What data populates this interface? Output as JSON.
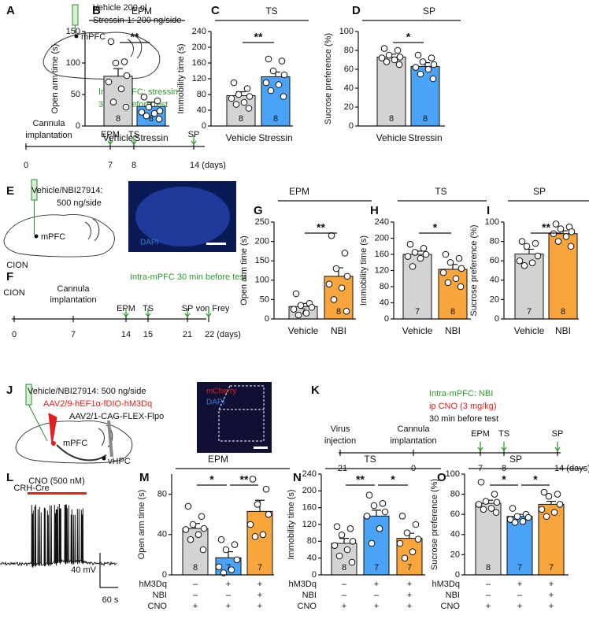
{
  "chart_data": [
    {
      "type": "bar",
      "panel": "B",
      "title": "EPM",
      "ylabel": "Open arm time (s)",
      "categories": [
        "Vehicle",
        "Stressin"
      ],
      "values": [
        79,
        31
      ],
      "errors": [
        12,
        7
      ],
      "colors": [
        "#d3d3d3",
        "#4ba3f7"
      ],
      "n": [
        8,
        8
      ],
      "points": [
        [
          134,
          102,
          100,
          80,
          70,
          59,
          38,
          30
        ],
        [
          46,
          40,
          30,
          24,
          22,
          20,
          16,
          11
        ]
      ],
      "significance": [
        "**"
      ],
      "ylim": [
        0,
        150
      ],
      "yticks": [
        0,
        50,
        100,
        150
      ]
    },
    {
      "type": "bar",
      "panel": "C",
      "title": "TS",
      "ylabel": "Immobility time (s)",
      "categories": [
        "Vehicle",
        "Stressin"
      ],
      "values": [
        77,
        125
      ],
      "errors": [
        10,
        12
      ],
      "colors": [
        "#d3d3d3",
        "#4ba3f7"
      ],
      "n": [
        8,
        8
      ],
      "points": [
        [
          110,
          95,
          80,
          75,
          70,
          60,
          55,
          45
        ],
        [
          170,
          165,
          140,
          130,
          110,
          105,
          90,
          75
        ]
      ],
      "significance": [
        "**"
      ],
      "ylim": [
        0,
        240
      ],
      "yticks": [
        0,
        40,
        80,
        120,
        160,
        200,
        240
      ]
    },
    {
      "type": "bar",
      "panel": "D",
      "title": "SP",
      "ylabel": "Sucrose preference (%)",
      "categories": [
        "Vehicle",
        "Stressin"
      ],
      "values": [
        73,
        63
      ],
      "errors": [
        3,
        4
      ],
      "colors": [
        "#d3d3d3",
        "#4ba3f7"
      ],
      "n": [
        8,
        8
      ],
      "points": [
        [
          82,
          80,
          75,
          73,
          72,
          70,
          68,
          65
        ],
        [
          75,
          72,
          68,
          65,
          62,
          60,
          55,
          50
        ]
      ],
      "significance": [
        "*"
      ],
      "ylim": [
        0,
        100
      ],
      "yticks": [
        0,
        20,
        40,
        60,
        80,
        100
      ]
    },
    {
      "type": "bar",
      "panel": "G",
      "title": "EPM",
      "ylabel": "Open arm time (s)",
      "categories": [
        "Vehicle",
        "NBI"
      ],
      "values": [
        32,
        110
      ],
      "errors": [
        8,
        22
      ],
      "colors": [
        "#d3d3d3",
        "#f8a53b"
      ],
      "n": [
        7,
        8
      ],
      "points": [
        [
          65,
          40,
          35,
          30,
          25,
          15,
          10
        ],
        [
          215,
          170,
          130,
          110,
          90,
          80,
          50,
          20
        ]
      ],
      "significance": [
        "**"
      ],
      "ylim": [
        0,
        250
      ],
      "yticks": [
        0,
        50,
        100,
        150,
        200,
        250
      ]
    },
    {
      "type": "bar",
      "panel": "H",
      "title": "TS",
      "ylabel": "Immobility time (s)",
      "categories": [
        "Vehicle",
        "NBI"
      ],
      "values": [
        160,
        123
      ],
      "errors": [
        8,
        12
      ],
      "colors": [
        "#d3d3d3",
        "#f8a53b"
      ],
      "n": [
        7,
        8
      ],
      "points": [
        [
          185,
          175,
          165,
          160,
          155,
          150,
          130
        ],
        [
          160,
          150,
          140,
          125,
          115,
          100,
          90,
          80
        ]
      ],
      "significance": [
        "*"
      ],
      "ylim": [
        0,
        240
      ],
      "yticks": [
        0,
        40,
        80,
        120,
        160,
        200,
        240
      ]
    },
    {
      "type": "bar",
      "panel": "I",
      "title": "SP",
      "ylabel": "Sucrose preference (%)",
      "categories": [
        "Vehicle",
        "NBI"
      ],
      "values": [
        67,
        88
      ],
      "errors": [
        5,
        3
      ],
      "colors": [
        "#d3d3d3",
        "#f8a53b"
      ],
      "n": [
        7,
        8
      ],
      "points": [
        [
          80,
          78,
          75,
          65,
          60,
          58,
          55
        ],
        [
          98,
          95,
          93,
          90,
          88,
          85,
          80,
          75
        ]
      ],
      "significance": [
        "**"
      ],
      "ylim": [
        0,
        100
      ],
      "yticks": [
        0,
        20,
        40,
        60,
        80,
        100
      ]
    },
    {
      "type": "bar",
      "panel": "M",
      "title": "EPM",
      "ylabel": "Open arm time (s)",
      "categories": [
        null,
        null,
        null
      ],
      "values": [
        46,
        17,
        63
      ],
      "errors": [
        5,
        6,
        11
      ],
      "colors": [
        "#d3d3d3",
        "#4ba3f7",
        "#f8a53b"
      ],
      "n": [
        8,
        7,
        7
      ],
      "points": [
        [
          68,
          58,
          50,
          46,
          45,
          40,
          35,
          25
        ],
        [
          35,
          30,
          25,
          15,
          8,
          5,
          2
        ],
        [
          95,
          85,
          70,
          60,
          50,
          40,
          38
        ]
      ],
      "significance": [
        "*",
        "**"
      ],
      "ylim": [
        0,
        100
      ],
      "yticks": [
        0,
        40,
        80
      ],
      "conditions": [
        {
          "label": "hM3Dq",
          "values": [
            "–",
            "+",
            "+"
          ]
        },
        {
          "label": "NBI",
          "values": [
            "–",
            "–",
            "+"
          ]
        },
        {
          "label": "CNO",
          "values": [
            "+",
            "+",
            "+"
          ]
        }
      ]
    },
    {
      "type": "bar",
      "panel": "N",
      "title": "TS",
      "ylabel": "Immobility time (s)",
      "categories": [
        null,
        null,
        null
      ],
      "values": [
        75,
        140,
        87
      ],
      "errors": [
        12,
        14,
        12
      ],
      "colors": [
        "#d3d3d3",
        "#4ba3f7",
        "#f8a53b"
      ],
      "n": [
        8,
        7,
        7
      ],
      "points": [
        [
          115,
          110,
          95,
          80,
          70,
          60,
          45,
          30
        ],
        [
          190,
          170,
          165,
          150,
          140,
          110,
          75
        ],
        [
          140,
          120,
          100,
          85,
          75,
          55,
          40
        ]
      ],
      "significance": [
        "**",
        "*"
      ],
      "ylim": [
        0,
        240
      ],
      "yticks": [
        0,
        40,
        80,
        120,
        160,
        200,
        240
      ],
      "conditions": [
        {
          "label": "hM3Dq",
          "values": [
            "–",
            "+",
            "+"
          ]
        },
        {
          "label": "NBI",
          "values": [
            "–",
            "–",
            "+"
          ]
        },
        {
          "label": "CNO",
          "values": [
            "+",
            "+",
            "+"
          ]
        }
      ]
    },
    {
      "type": "bar",
      "panel": "O",
      "title": "SP",
      "ylabel": "Sucrose preference (%)",
      "categories": [
        null,
        null,
        null
      ],
      "values": [
        71,
        58,
        70
      ],
      "errors": [
        3,
        2,
        3
      ],
      "colors": [
        "#d3d3d3",
        "#4ba3f7",
        "#f8a53b"
      ],
      "n": [
        8,
        7,
        7
      ],
      "points": [
        [
          92,
          80,
          73,
          72,
          70,
          66,
          65,
          62
        ],
        [
          66,
          60,
          58,
          57,
          55,
          53,
          52
        ],
        [
          82,
          80,
          78,
          70,
          65,
          62,
          58
        ]
      ],
      "significance": [
        "*",
        "*"
      ],
      "ylim": [
        0,
        100
      ],
      "yticks": [
        0,
        20,
        40,
        60,
        80,
        100
      ],
      "conditions": [
        {
          "label": "hM3Dq",
          "values": [
            "–",
            "+",
            "+"
          ]
        },
        {
          "label": "NBI",
          "values": [
            "–",
            "–",
            "+"
          ]
        },
        {
          "label": "CNO",
          "values": [
            "+",
            "+",
            "+"
          ]
        }
      ]
    }
  ],
  "panels": {
    "A": {
      "letter": "A",
      "injection": [
        "Vehicle 200 nl",
        "Stressin-1: 200 ng/side"
      ],
      "region": "mPFC",
      "protocol": [
        "Intra-mPFC: stressin",
        "30 min before test"
      ],
      "surgery": [
        "Cannula",
        "implantation"
      ],
      "tests": [
        "EPM",
        "TS",
        "SP"
      ],
      "timeline": [
        "0",
        "7",
        "8",
        "14 (days)"
      ]
    },
    "E": {
      "letter": "E",
      "injection": [
        "Vehicle/NBI27914:",
        "500 ng/side"
      ],
      "region": "mPFC",
      "model": "CION",
      "stain": "DAPI"
    },
    "F": {
      "letter": "F",
      "protocol": "Intra-mPFC 30 min before test",
      "model": "CION",
      "surgery": [
        "Cannula",
        "implantation"
      ],
      "tests": [
        "EPM",
        "TS",
        "SP",
        "von Frey"
      ],
      "timeline": [
        "0",
        "7",
        "14",
        "15",
        "21",
        "22 (days)"
      ]
    },
    "J": {
      "letter": "J",
      "injection": "Vehicle/NBI27914: 500 ng/side",
      "virus": [
        "AAV2/9-hEF1α-fDIO-hM3Dq",
        "AAV2/1-CAG-FLEX-Flpo"
      ],
      "regions": [
        "mPFC",
        "vHPC"
      ],
      "mouse": "CRH-Cre",
      "stains": [
        "mCherry",
        "DAPI"
      ]
    },
    "K": {
      "letter": "K",
      "protocol": [
        "Intra-mPFC: NBI",
        "ip CNO (3 mg/kg)",
        "30 min before test"
      ],
      "events": [
        [
          "Virus",
          "injection"
        ],
        [
          "Cannula",
          "implantation"
        ]
      ],
      "tests": [
        "EPM",
        "TS",
        "SP"
      ],
      "timeline": [
        "–21",
        "0",
        "7",
        "8",
        "14 (days)"
      ]
    },
    "L": {
      "letter": "L",
      "drug": "CNO (500 nM)",
      "scale": [
        "40 mV",
        "60 s"
      ]
    }
  }
}
